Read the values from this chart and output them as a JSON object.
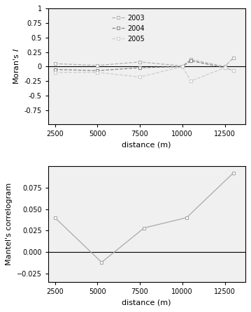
{
  "top": {
    "x": [
      2500,
      5000,
      7500,
      10000,
      10500,
      12500,
      13000
    ],
    "y2003": [
      0.05,
      0.02,
      0.08,
      0.01,
      0.12,
      0.0,
      0.15
    ],
    "y2004": [
      -0.05,
      -0.07,
      -0.02,
      0.0,
      0.1,
      -0.02,
      -0.07
    ],
    "y2005": [
      -0.1,
      -0.1,
      -0.18,
      0.0,
      -0.25,
      -0.02,
      -0.07
    ],
    "ylabel": "Moran's $I$",
    "xlabel": "distance (m)",
    "ylim": [
      -1.0,
      1.0
    ],
    "xlim": [
      2100,
      13700
    ],
    "xticks": [
      2500,
      5000,
      7500,
      10000,
      12500
    ],
    "yticks": [
      -0.75,
      -0.5,
      -0.25,
      0.0,
      0.25,
      0.5,
      0.75,
      1.0
    ],
    "yticklabels": [
      "-0.75",
      "-0.5",
      "-0.25",
      "0",
      "0.25",
      "0.5",
      "0.75",
      "1"
    ],
    "color_2003": "#b0b0b0",
    "color_2004": "#888888",
    "color_2005": "#cccccc",
    "legend_labels": [
      "2003",
      "2004",
      "2005"
    ],
    "bg_color": "#f0f0f0"
  },
  "bottom": {
    "x": [
      2500,
      5250,
      7750,
      10250,
      13000
    ],
    "y": [
      0.04,
      -0.012,
      0.028,
      0.04,
      0.092
    ],
    "ylabel": "Mantel's correlogram",
    "xlabel": "distance (m)",
    "ylim": [
      -0.035,
      0.1
    ],
    "xlim": [
      2100,
      13700
    ],
    "xticks": [
      2500,
      5000,
      7500,
      10000,
      12500
    ],
    "yticks": [
      -0.025,
      0.0,
      0.025,
      0.05,
      0.075
    ],
    "color": "#aaaaaa",
    "bg_color": "#f0f0f0"
  }
}
